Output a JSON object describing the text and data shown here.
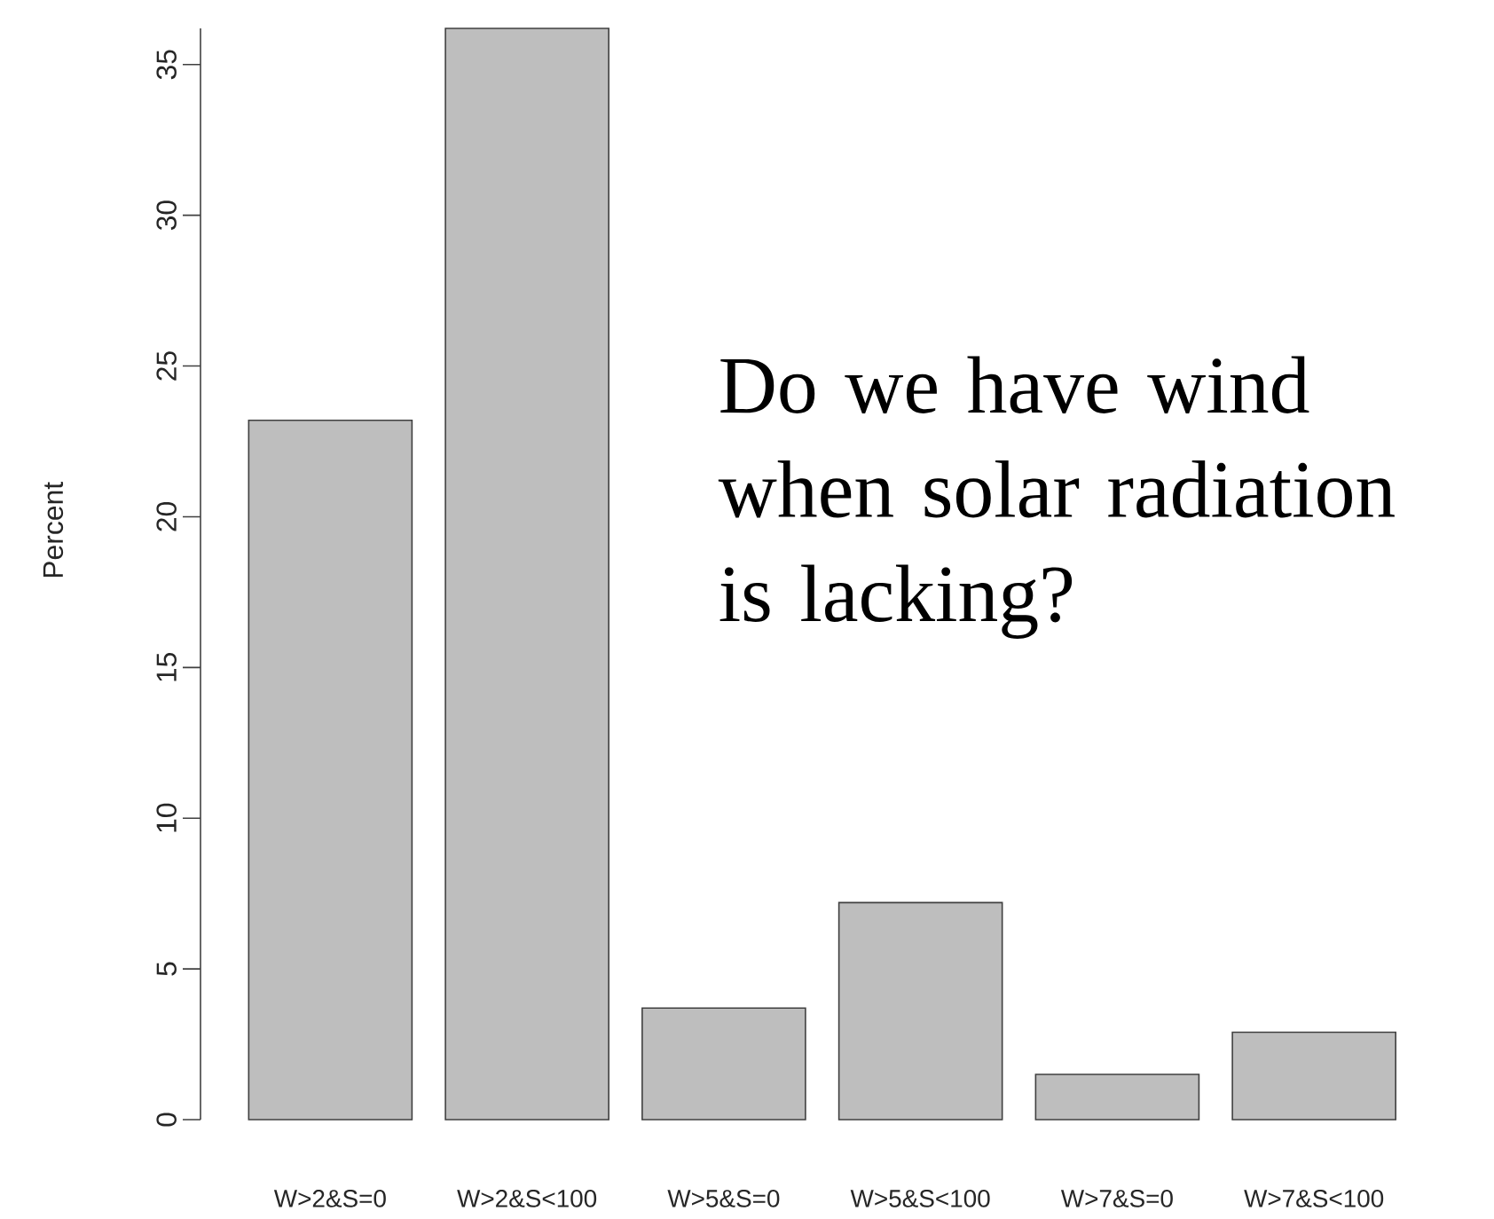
{
  "chart_data": {
    "type": "bar",
    "ylabel": "Percent",
    "categories": [
      "W>2&S=0",
      "W>2&S<100",
      "W>5&S=0",
      "W>5&S<100",
      "W>7&S=0",
      "W>7&S<100"
    ],
    "values": [
      23.2,
      36.2,
      3.7,
      7.2,
      1.5,
      2.9
    ],
    "color": "#bebebe",
    "ylim": [
      0,
      36.2
    ],
    "yticks": [
      0,
      5,
      10,
      15,
      20,
      25,
      30,
      35
    ],
    "annotations": [
      "Do we have wind when solar radiation is lacking?"
    ]
  }
}
